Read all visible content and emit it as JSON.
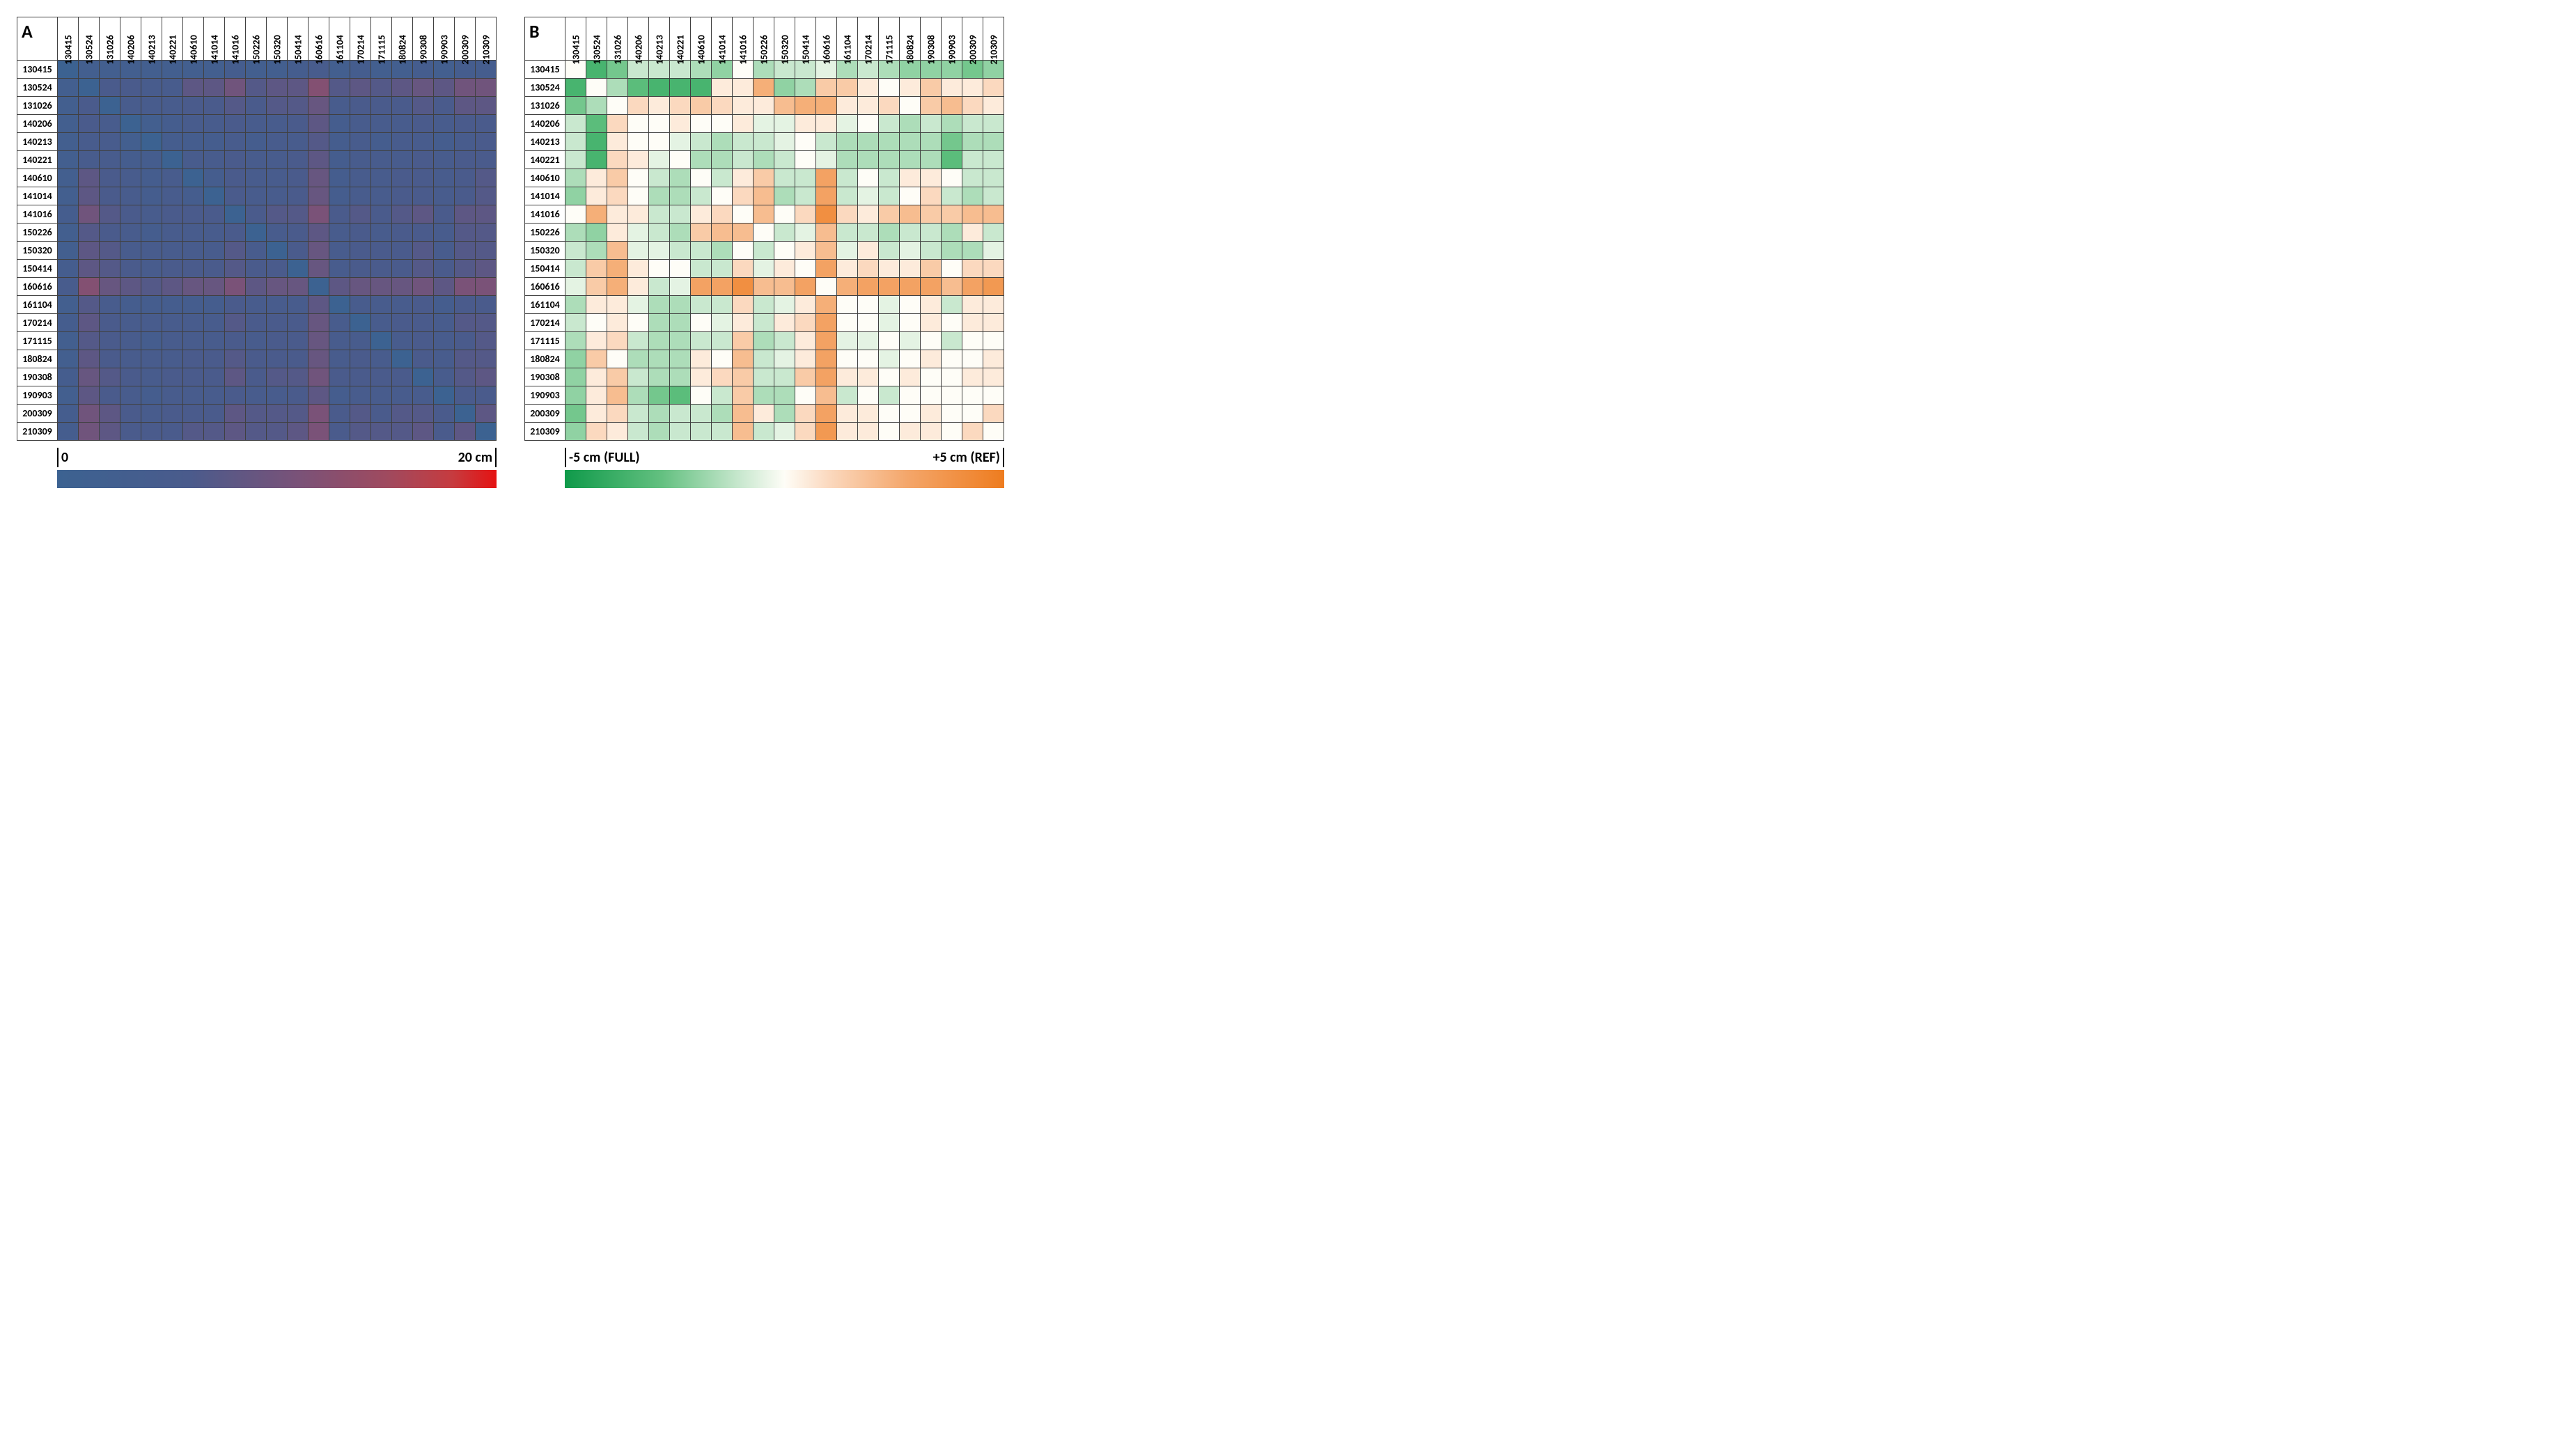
{
  "labels": [
    "130415",
    "130524",
    "131026",
    "140206",
    "140213",
    "140221",
    "140610",
    "141014",
    "141016",
    "150226",
    "150320",
    "150414",
    "160616",
    "161104",
    "170214",
    "171115",
    "180824",
    "190308",
    "190903",
    "200309",
    "210309"
  ],
  "panelA": {
    "letter": "A",
    "type": "heatmap",
    "vmin": 0,
    "vmax": 20,
    "cell_border": "#404040",
    "font_size_labels": 14,
    "colormap": {
      "stops": [
        {
          "t": 0.0,
          "c": "#3c6291"
        },
        {
          "t": 0.3,
          "c": "#4a5b8c"
        },
        {
          "t": 0.55,
          "c": "#7a5278"
        },
        {
          "t": 0.75,
          "c": "#9f4a5f"
        },
        {
          "t": 0.9,
          "c": "#c63b3f"
        },
        {
          "t": 1.0,
          "c": "#e51212"
        }
      ]
    },
    "colorbar": {
      "left_label": "0",
      "right_label": "20 cm"
    },
    "values": [
      [
        0,
        3,
        3,
        3,
        3,
        3,
        3,
        3,
        4,
        3,
        3,
        4,
        5,
        3,
        4,
        3,
        3,
        4,
        3,
        4,
        4
      ],
      [
        3,
        0,
        6,
        6,
        5,
        5,
        8,
        8,
        10,
        7,
        8,
        8,
        12,
        7,
        8,
        7,
        8,
        9,
        8,
        10,
        10
      ],
      [
        3,
        6,
        0,
        5,
        5,
        5,
        6,
        6,
        7,
        6,
        7,
        7,
        9,
        5,
        6,
        6,
        6,
        7,
        6,
        8,
        8
      ],
      [
        3,
        6,
        5,
        0,
        3,
        4,
        5,
        5,
        6,
        5,
        5,
        6,
        8,
        4,
        5,
        5,
        5,
        6,
        5,
        6,
        6
      ],
      [
        3,
        5,
        5,
        3,
        0,
        4,
        4,
        4,
        5,
        4,
        5,
        5,
        7,
        4,
        5,
        4,
        5,
        5,
        4,
        5,
        6
      ],
      [
        3,
        5,
        5,
        4,
        4,
        0,
        5,
        5,
        6,
        5,
        5,
        6,
        8,
        4,
        5,
        5,
        5,
        6,
        5,
        6,
        6
      ],
      [
        3,
        8,
        6,
        5,
        4,
        5,
        0,
        4,
        6,
        5,
        5,
        6,
        9,
        4,
        5,
        5,
        6,
        6,
        5,
        6,
        7
      ],
      [
        3,
        8,
        6,
        5,
        4,
        5,
        4,
        0,
        6,
        5,
        5,
        6,
        9,
        4,
        5,
        5,
        6,
        6,
        5,
        6,
        7
      ],
      [
        4,
        10,
        7,
        6,
        5,
        6,
        6,
        6,
        0,
        6,
        7,
        7,
        11,
        6,
        7,
        6,
        7,
        8,
        6,
        8,
        8
      ],
      [
        3,
        7,
        6,
        5,
        4,
        5,
        5,
        5,
        6,
        0,
        5,
        6,
        8,
        5,
        6,
        5,
        6,
        6,
        5,
        7,
        7
      ],
      [
        3,
        8,
        7,
        5,
        5,
        5,
        5,
        5,
        7,
        5,
        0,
        6,
        9,
        5,
        6,
        6,
        6,
        7,
        5,
        7,
        7
      ],
      [
        4,
        8,
        7,
        6,
        5,
        6,
        6,
        6,
        7,
        6,
        6,
        0,
        9,
        5,
        6,
        6,
        6,
        7,
        6,
        7,
        8
      ],
      [
        5,
        12,
        9,
        8,
        7,
        8,
        9,
        9,
        11,
        8,
        9,
        9,
        0,
        8,
        9,
        9,
        9,
        10,
        8,
        11,
        11
      ],
      [
        3,
        7,
        5,
        4,
        4,
        4,
        4,
        4,
        6,
        5,
        5,
        5,
        8,
        0,
        5,
        5,
        5,
        6,
        4,
        6,
        6
      ],
      [
        4,
        8,
        6,
        5,
        5,
        5,
        5,
        5,
        7,
        6,
        6,
        6,
        9,
        5,
        0,
        5,
        6,
        6,
        5,
        7,
        7
      ],
      [
        3,
        7,
        6,
        5,
        4,
        5,
        5,
        5,
        6,
        5,
        6,
        6,
        9,
        5,
        5,
        0,
        5,
        6,
        5,
        6,
        7
      ],
      [
        3,
        8,
        6,
        5,
        5,
        5,
        6,
        6,
        7,
        6,
        6,
        6,
        9,
        5,
        6,
        5,
        0,
        6,
        5,
        7,
        7
      ],
      [
        4,
        9,
        7,
        6,
        5,
        6,
        6,
        6,
        8,
        6,
        7,
        7,
        10,
        6,
        6,
        6,
        6,
        0,
        5,
        7,
        8
      ],
      [
        3,
        8,
        6,
        5,
        4,
        5,
        5,
        5,
        6,
        5,
        5,
        6,
        8,
        4,
        5,
        5,
        5,
        5,
        0,
        6,
        6
      ],
      [
        4,
        10,
        8,
        6,
        5,
        6,
        6,
        6,
        8,
        7,
        7,
        7,
        11,
        6,
        7,
        6,
        7,
        7,
        6,
        0,
        8
      ],
      [
        4,
        10,
        8,
        6,
        6,
        6,
        7,
        7,
        8,
        7,
        7,
        8,
        11,
        6,
        7,
        7,
        7,
        8,
        6,
        8,
        0
      ]
    ]
  },
  "panelB": {
    "letter": "B",
    "type": "heatmap",
    "vmin": -5,
    "vmax": 5,
    "cell_border": "#404040",
    "font_size_labels": 14,
    "colormap": {
      "stops": [
        {
          "t": 0.0,
          "c": "#0f9a4a"
        },
        {
          "t": 0.22,
          "c": "#63c080"
        },
        {
          "t": 0.4,
          "c": "#c9e8cf"
        },
        {
          "t": 0.5,
          "c": "#fefdf7"
        },
        {
          "t": 0.6,
          "c": "#fbd9bf"
        },
        {
          "t": 0.78,
          "c": "#f4a66a"
        },
        {
          "t": 1.0,
          "c": "#ee7c1f"
        }
      ]
    },
    "colorbar": {
      "left_label": "-5 cm (FULL)",
      "right_label": "+5 cm (REF)"
    },
    "values": [
      [
        0.0,
        -3.5,
        -2.5,
        -1.0,
        -1.0,
        -1.0,
        -1.5,
        -2.0,
        0.0,
        -1.5,
        -1.0,
        -1.0,
        -0.5,
        -1.5,
        -1.0,
        -1.5,
        -2.0,
        -2.0,
        -2.0,
        -2.5,
        -2.0
      ],
      [
        -3.5,
        0.0,
        -1.5,
        -3.0,
        -3.5,
        -3.5,
        -3.5,
        0.5,
        0.5,
        2.5,
        -2.0,
        -1.5,
        1.5,
        1.5,
        0.5,
        0.0,
        0.5,
        1.5,
        0.5,
        0.5,
        1.0
      ],
      [
        -2.5,
        -1.5,
        0.0,
        1.0,
        0.5,
        1.0,
        1.5,
        1.0,
        0.5,
        0.5,
        2.0,
        2.5,
        2.5,
        0.5,
        0.5,
        1.0,
        0.0,
        1.5,
        2.0,
        1.0,
        0.5
      ],
      [
        -1.0,
        -3.0,
        1.0,
        0.0,
        0.0,
        0.5,
        0.0,
        0.0,
        0.5,
        -0.5,
        -0.5,
        0.5,
        0.5,
        -0.5,
        0.0,
        -1.0,
        -1.5,
        -1.0,
        -1.5,
        -1.0,
        -1.0
      ],
      [
        -1.0,
        -3.5,
        0.5,
        0.0,
        0.0,
        -0.5,
        -1.0,
        -1.5,
        -1.0,
        -1.0,
        -0.5,
        0.0,
        -1.0,
        -1.5,
        -1.5,
        -1.5,
        -1.5,
        -1.5,
        -2.5,
        -1.5,
        -1.5
      ],
      [
        -1.0,
        -3.5,
        1.0,
        0.5,
        -0.5,
        0.0,
        -1.5,
        -1.5,
        -1.0,
        -1.5,
        -1.0,
        0.0,
        -0.5,
        -1.5,
        -1.5,
        -1.5,
        -1.5,
        -1.5,
        -3.0,
        -1.0,
        -1.0
      ],
      [
        -1.5,
        0.5,
        1.5,
        0.0,
        -1.0,
        -1.5,
        0.0,
        -1.0,
        0.5,
        1.5,
        -1.0,
        -1.0,
        3.0,
        -1.0,
        0.0,
        -1.0,
        0.5,
        0.5,
        0.0,
        -1.0,
        -1.0
      ],
      [
        -2.0,
        0.5,
        1.0,
        0.0,
        -1.5,
        -1.5,
        -1.0,
        0.0,
        1.0,
        2.0,
        -1.5,
        -1.0,
        3.0,
        -1.0,
        -0.5,
        -1.0,
        0.0,
        1.0,
        -1.0,
        -1.5,
        -1.0
      ],
      [
        0.0,
        2.5,
        0.5,
        0.5,
        -1.0,
        -1.0,
        0.5,
        1.0,
        0.0,
        2.0,
        0.0,
        1.0,
        4.0,
        1.0,
        0.5,
        1.5,
        2.0,
        1.5,
        1.5,
        2.0,
        2.0
      ],
      [
        -1.5,
        -2.0,
        0.5,
        -0.5,
        -1.0,
        -1.5,
        1.5,
        2.0,
        2.0,
        0.0,
        -1.0,
        -0.5,
        2.0,
        -1.0,
        -1.0,
        -1.5,
        -1.0,
        -1.0,
        -1.5,
        0.5,
        -1.0
      ],
      [
        -1.0,
        -1.5,
        2.0,
        -0.5,
        -0.5,
        -1.0,
        -1.0,
        -1.5,
        0.0,
        -1.0,
        0.0,
        0.5,
        2.0,
        -0.5,
        0.5,
        -1.0,
        -0.5,
        -1.0,
        -1.5,
        -1.5,
        -0.5
      ],
      [
        -1.0,
        1.5,
        2.5,
        0.5,
        0.0,
        0.0,
        -1.0,
        -1.0,
        1.0,
        -0.5,
        0.5,
        0.0,
        3.0,
        0.5,
        1.0,
        0.5,
        0.5,
        1.5,
        0.0,
        1.0,
        1.0
      ],
      [
        -0.5,
        1.5,
        2.5,
        0.5,
        -1.0,
        -0.5,
        3.0,
        3.0,
        4.0,
        2.0,
        2.0,
        3.0,
        0.0,
        2.5,
        3.0,
        3.0,
        3.0,
        3.0,
        2.0,
        3.0,
        3.5
      ],
      [
        -1.5,
        0.5,
        0.5,
        -0.5,
        -1.5,
        -1.5,
        -1.0,
        -1.0,
        1.0,
        -1.0,
        -0.5,
        0.5,
        2.5,
        0.0,
        0.0,
        -0.5,
        0.0,
        0.5,
        -1.0,
        0.5,
        0.5
      ],
      [
        -1.0,
        0.0,
        0.5,
        0.0,
        -1.5,
        -1.5,
        0.0,
        -0.5,
        0.5,
        -1.0,
        0.5,
        1.0,
        3.0,
        0.0,
        0.0,
        -0.5,
        0.0,
        0.5,
        0.0,
        0.5,
        0.5
      ],
      [
        -1.5,
        0.5,
        1.0,
        -1.0,
        -1.5,
        -1.5,
        -1.0,
        -1.0,
        1.5,
        -1.5,
        -1.0,
        0.5,
        3.0,
        -0.5,
        -0.5,
        0.0,
        -0.5,
        0.0,
        -1.0,
        0.0,
        0.0
      ],
      [
        -2.0,
        1.5,
        0.0,
        -1.5,
        -1.5,
        -1.5,
        0.5,
        0.0,
        2.0,
        -1.0,
        -0.5,
        0.5,
        3.0,
        0.0,
        0.0,
        -0.5,
        0.0,
        0.5,
        0.0,
        0.0,
        0.5
      ],
      [
        -2.0,
        0.5,
        1.5,
        -1.0,
        -1.5,
        -1.5,
        0.5,
        1.0,
        1.5,
        -1.0,
        -1.0,
        1.5,
        3.0,
        0.5,
        0.5,
        0.0,
        0.5,
        0.0,
        0.0,
        0.5,
        0.5
      ],
      [
        -2.0,
        0.5,
        2.0,
        -1.5,
        -2.5,
        -3.0,
        0.0,
        -1.0,
        1.5,
        -1.5,
        -1.5,
        0.0,
        2.0,
        -1.0,
        0.0,
        -1.0,
        0.0,
        0.0,
        0.0,
        0.0,
        0.0
      ],
      [
        -2.5,
        0.5,
        1.0,
        -1.0,
        -1.5,
        -1.0,
        -1.0,
        -1.5,
        2.0,
        0.5,
        -1.5,
        1.0,
        3.0,
        0.5,
        0.5,
        0.0,
        0.0,
        0.5,
        0.0,
        0.0,
        1.0
      ],
      [
        -2.0,
        1.0,
        0.5,
        -1.0,
        -1.5,
        -1.0,
        -1.0,
        -1.0,
        2.0,
        -1.0,
        -0.5,
        1.0,
        3.5,
        0.5,
        0.5,
        0.0,
        0.5,
        0.5,
        0.0,
        1.0,
        0.0
      ]
    ]
  }
}
